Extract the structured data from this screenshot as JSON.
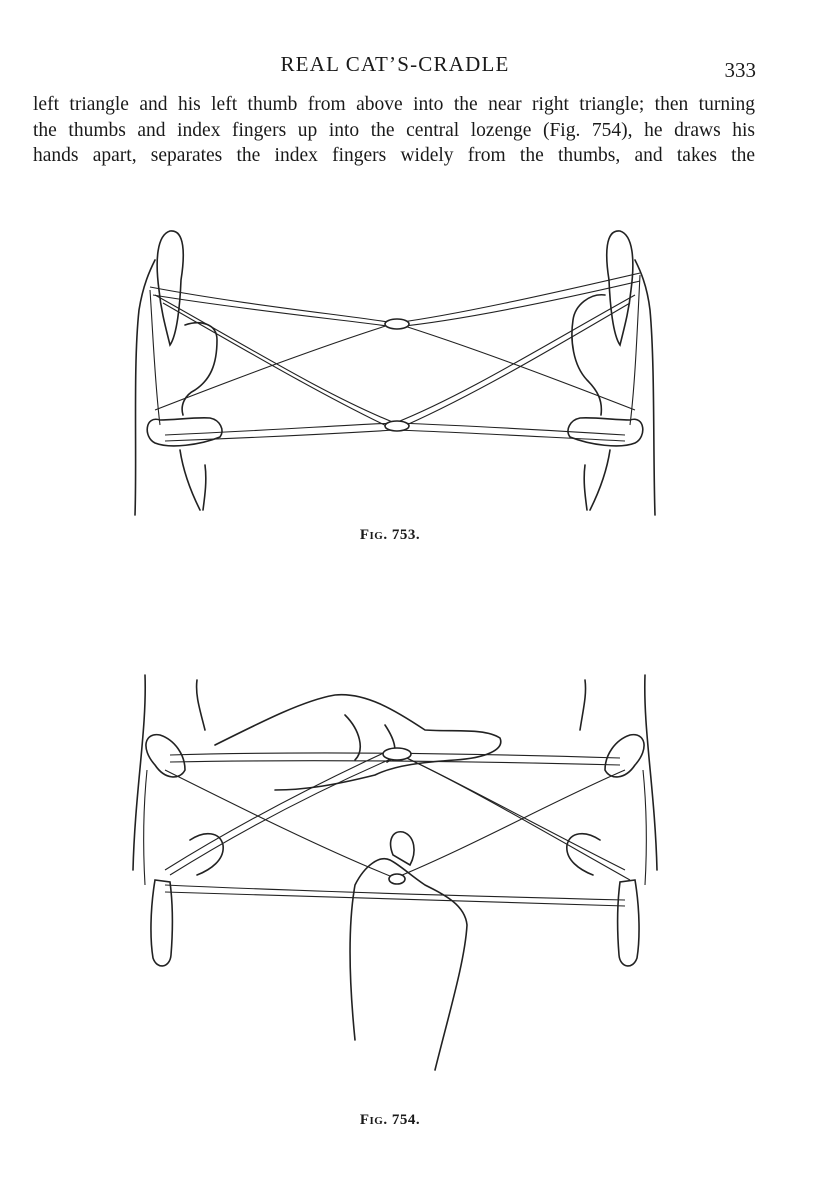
{
  "header": {
    "title": "REAL CAT’S-CRADLE",
    "page_number": "333"
  },
  "body": {
    "lines": [
      "left triangle and his left thumb from above into the near right triangle; then turning",
      "the thumbs and index fingers up into the central lozenge (Fig. 754), he draws his",
      "hands apart, separates the index fingers widely from the thumbs, and takes the"
    ]
  },
  "figures": [
    {
      "caption_prefix": "F",
      "caption_smallcaps": "IG",
      "caption_number": ". 753."
    },
    {
      "caption_prefix": "F",
      "caption_smallcaps": "IG",
      "caption_number": ". 754."
    }
  ]
}
